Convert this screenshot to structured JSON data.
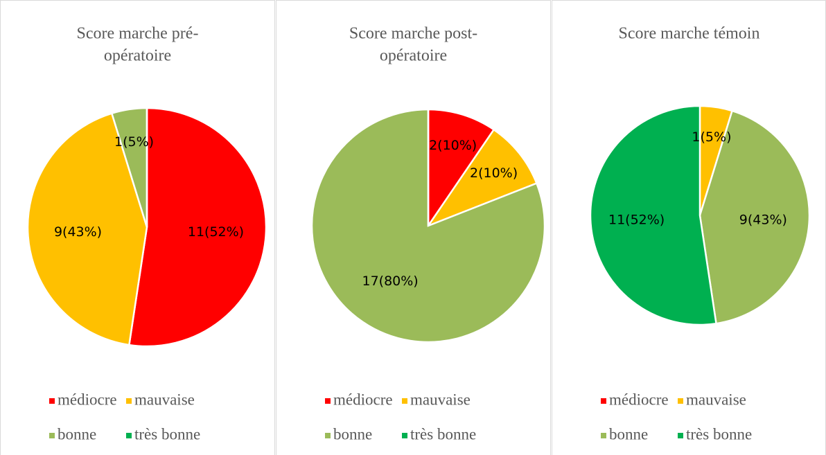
{
  "chart_data": [
    {
      "type": "pie",
      "title": [
        "Score marche pré-",
        "opératoire"
      ],
      "categories": [
        "médiocre",
        "mauvaise",
        "bonne",
        "très bonne"
      ],
      "colors": [
        "#ff0000",
        "#ffc000",
        "#9bbb59",
        "#00b050"
      ],
      "values": [
        11,
        9,
        1,
        0
      ],
      "value_labels": [
        "11(52%)",
        "9(43%)",
        "1(5%)",
        null
      ]
    },
    {
      "type": "pie",
      "title": [
        "Score marche post-",
        "opératoire"
      ],
      "categories": [
        "médiocre",
        "mauvaise",
        "bonne",
        "très bonne"
      ],
      "colors": [
        "#ff0000",
        "#ffc000",
        "#9bbb59",
        "#00b050"
      ],
      "values": [
        2,
        2,
        17,
        0
      ],
      "value_labels": [
        "2(10%)",
        "2(10%)",
        "17(80%)",
        null
      ]
    },
    {
      "type": "pie",
      "title": [
        "Score marche témoin"
      ],
      "categories": [
        "médiocre",
        "mauvaise",
        "bonne",
        "très bonne"
      ],
      "colors": [
        "#ff0000",
        "#ffc000",
        "#9bbb59",
        "#00b050"
      ],
      "values": [
        0,
        1,
        9,
        11
      ],
      "value_labels": [
        null,
        "1(5%)",
        "9(43%)",
        "11(52%)"
      ]
    }
  ]
}
